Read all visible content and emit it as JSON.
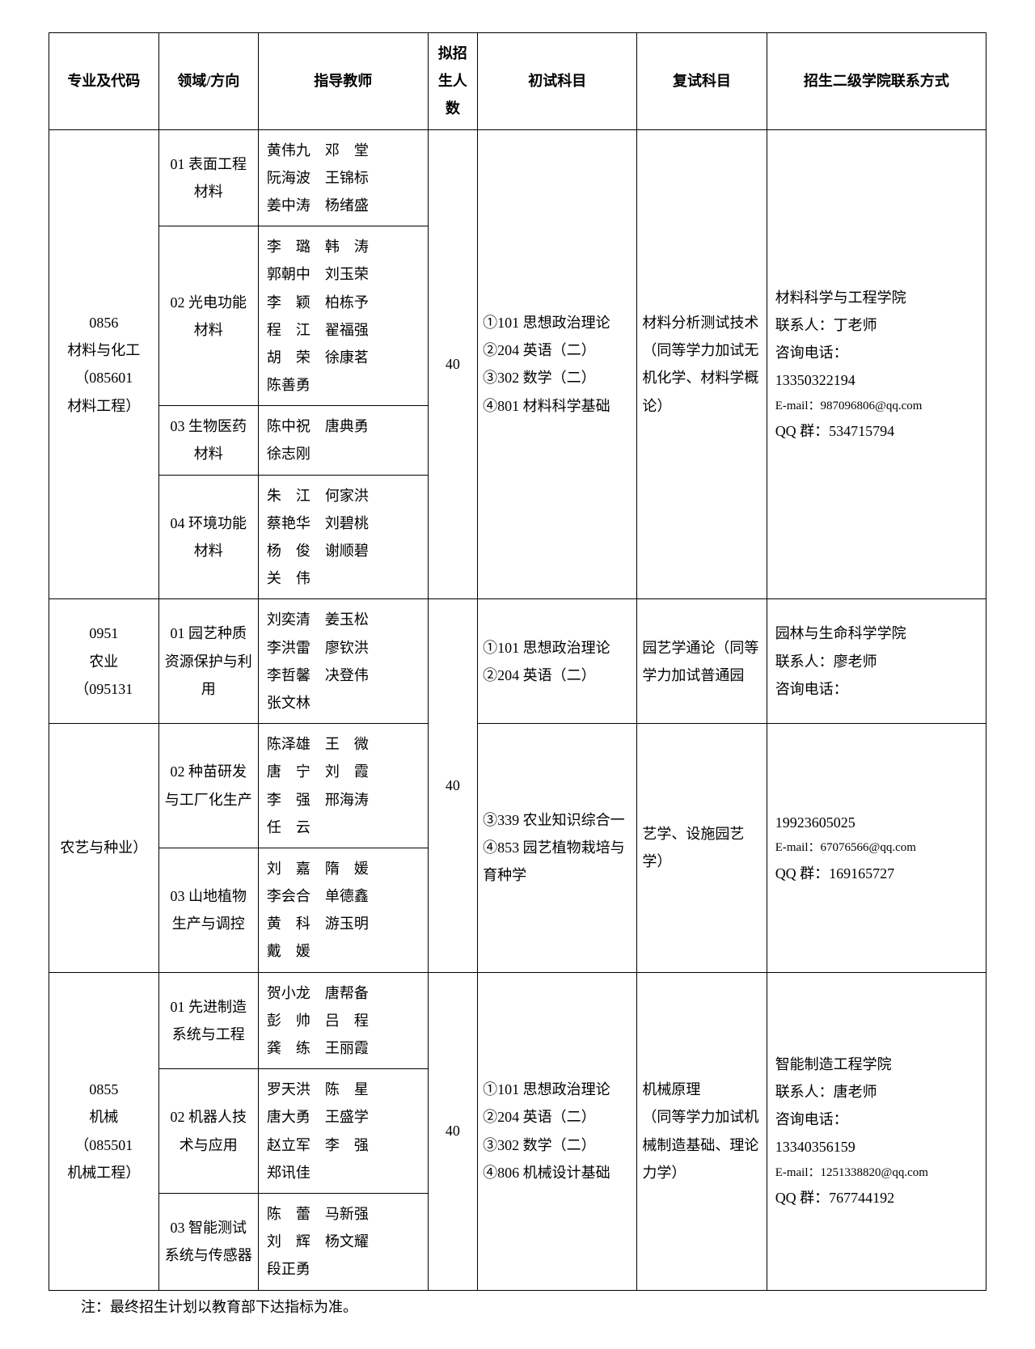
{
  "headers": {
    "c1": "专业及代码",
    "c2": "领域/方向",
    "c3": "指导教师",
    "c4": "拟招生人数",
    "c5": "初试科目",
    "c6": "复试科目",
    "c7": "招生二级学院联系方式"
  },
  "majors": [
    {
      "name": "0856\n材料与化工\n（085601\n材料工程）",
      "directions": [
        {
          "label": "01 表面工程材料",
          "teachers": "黄伟九　邓　堂\n阮海波　王锦标\n姜中涛　杨绪盛"
        },
        {
          "label": "02 光电功能材料",
          "teachers": "李　璐　韩　涛\n郭朝中　刘玉荣\n李　颖　柏栋予\n程　江　翟福强\n胡　荣　徐康茗\n陈善勇"
        },
        {
          "label": "03 生物医药材料",
          "teachers": "陈中祝　唐典勇\n徐志刚"
        },
        {
          "label": "04 环境功能材料",
          "teachers": "朱　江　何家洪\n蔡艳华　刘碧桃\n杨　俊　谢顺碧\n关　伟"
        }
      ],
      "quota": "40",
      "exam1": "①101 思想政治理论\n②204 英语（二）\n③302 数学（二）\n④801 材料科学基础",
      "exam2": "材料分析测试技术\n（同等学力加试无机化学、材料学概论）",
      "contact": {
        "school": "材料科学与工程学院",
        "person": "联系人：丁老师",
        "tel_label": "咨询电话：",
        "tel": "13350322194",
        "email": "E-mail：987096806@qq.com",
        "qq": "QQ 群：534715794"
      }
    },
    {
      "name_a": "0951\n农业\n（095131",
      "name_b": "农艺与种业）",
      "directions": [
        {
          "label": "01 园艺种质资源保护与利用",
          "teachers": "刘奕清　姜玉松\n李洪雷　廖钦洪\n李哲馨　决登伟\n张文林"
        },
        {
          "label": "02 种苗研发与工厂化生产",
          "teachers": "陈泽雄　王　微\n唐　宁　刘　霞\n李　强　邢海涛\n任　云"
        },
        {
          "label": "03 山地植物生产与调控",
          "teachers": "刘　嘉　隋　媛\n李会合　单德鑫\n黄　科　游玉明\n戴　媛"
        }
      ],
      "quota": "40",
      "exam1_a": "①101 思想政治理论\n②204 英语（二）",
      "exam1_b": "③339 农业知识综合一\n④853 园艺植物栽培与育种学",
      "exam2_a": "园艺学通论（同等学力加试普通园",
      "exam2_b": "艺学、设施园艺学）",
      "contact_a": {
        "school": "园林与生命科学学院",
        "person": "联系人：廖老师",
        "tel_label": "咨询电话："
      },
      "contact_b": {
        "tel": "19923605025",
        "email": "E-mail：67076566@qq.com",
        "qq": "QQ 群：169165727"
      }
    },
    {
      "name": "0855\n机械\n（085501\n机械工程）",
      "directions": [
        {
          "label": "01 先进制造系统与工程",
          "teachers": "贺小龙　唐帮备\n彭　帅　吕　程\n龚　练　王丽霞"
        },
        {
          "label": "02 机器人技术与应用",
          "teachers": "罗天洪　陈　星\n唐大勇　王盛学\n赵立军　李　强\n郑讯佳"
        },
        {
          "label": "03 智能测试系统与传感器",
          "teachers": "陈　蕾　马新强\n刘　辉　杨文耀\n段正勇"
        }
      ],
      "quota": "40",
      "exam1": "①101 思想政治理论\n②204 英语（二）\n③302 数学（二）\n④806 机械设计基础",
      "exam2": "机械原理\n（同等学力加试机械制造基础、理论力学）",
      "contact": {
        "school": "智能制造工程学院",
        "person": "联系人：唐老师",
        "tel_label": "咨询电话：",
        "tel": "13340356159",
        "email": "E-mail：1251338820@qq.com",
        "qq": "QQ 群：767744192"
      }
    }
  ],
  "footnote": "注：最终招生计划以教育部下达指标为准。"
}
